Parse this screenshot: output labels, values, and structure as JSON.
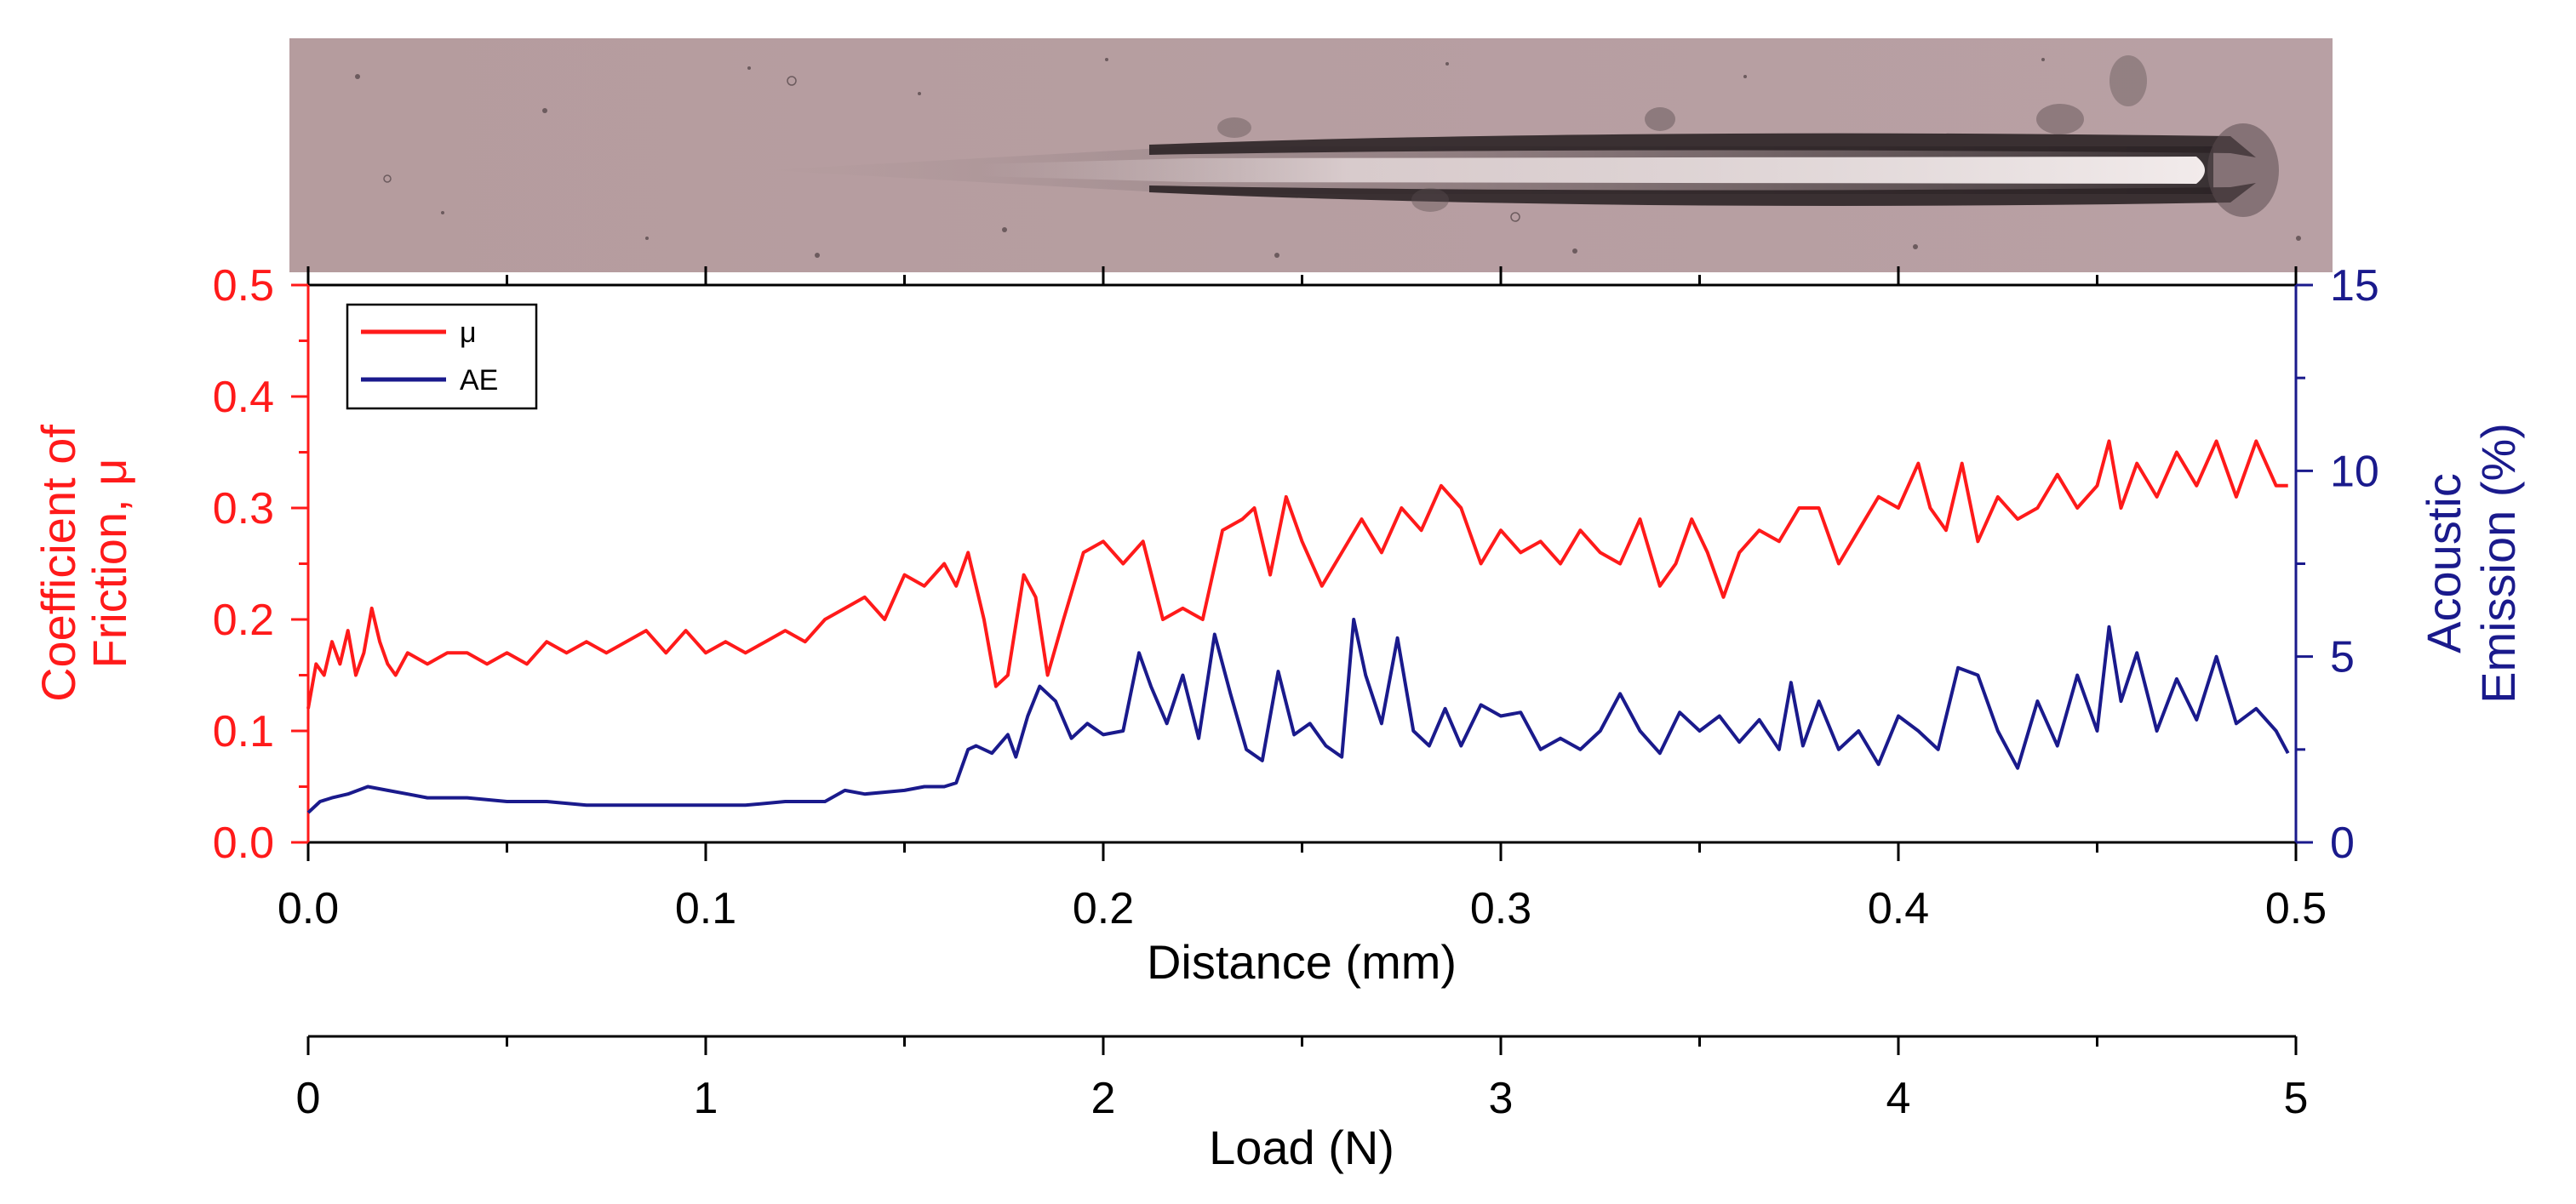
{
  "chart_data": {
    "type": "line",
    "title": "",
    "micrograph": {
      "description_icon": "scratch-track-micrograph-icon"
    },
    "x": {
      "label": "Distance (mm)",
      "lim": [
        0,
        0.5
      ],
      "ticks": [
        "0.0",
        "0.1",
        "0.2",
        "0.3",
        "0.4",
        "0.5"
      ],
      "tick_values": [
        0.0,
        0.1,
        0.2,
        0.3,
        0.4,
        0.5
      ]
    },
    "x2": {
      "label": "Load (N)",
      "lim": [
        0,
        5
      ],
      "ticks": [
        "0",
        "1",
        "2",
        "3",
        "4",
        "5"
      ],
      "tick_values": [
        0,
        1,
        2,
        3,
        4,
        5
      ]
    },
    "y_left": {
      "label_line1": "Coefficient of",
      "label_line2": "Friction, μ",
      "lim": [
        0,
        0.5
      ],
      "ticks": [
        "0.0",
        "0.1",
        "0.2",
        "0.3",
        "0.4",
        "0.5"
      ],
      "tick_values": [
        0.0,
        0.1,
        0.2,
        0.3,
        0.4,
        0.5
      ],
      "color": "#ff1a1a"
    },
    "y_right": {
      "label_line1": "Acoustic",
      "label_line2": "Emission (%)",
      "lim": [
        0,
        15
      ],
      "ticks": [
        "0",
        "5",
        "10",
        "15"
      ],
      "tick_values": [
        0,
        5,
        10,
        15
      ],
      "color": "#1a1a8c"
    },
    "legend": {
      "position": "top-left",
      "entries": [
        {
          "name": "μ",
          "color": "#ff1a1a"
        },
        {
          "name": "AE",
          "color": "#1a1a8c"
        }
      ]
    },
    "series": [
      {
        "name": "μ",
        "axis": "left",
        "color": "#ff1a1a",
        "x": [
          0.0,
          0.002,
          0.004,
          0.006,
          0.008,
          0.01,
          0.012,
          0.014,
          0.016,
          0.018,
          0.02,
          0.022,
          0.025,
          0.03,
          0.035,
          0.04,
          0.045,
          0.05,
          0.055,
          0.06,
          0.065,
          0.07,
          0.075,
          0.08,
          0.085,
          0.09,
          0.095,
          0.1,
          0.105,
          0.11,
          0.115,
          0.12,
          0.125,
          0.13,
          0.135,
          0.14,
          0.145,
          0.15,
          0.155,
          0.16,
          0.163,
          0.166,
          0.17,
          0.173,
          0.176,
          0.18,
          0.183,
          0.186,
          0.19,
          0.195,
          0.2,
          0.205,
          0.21,
          0.215,
          0.22,
          0.225,
          0.23,
          0.235,
          0.238,
          0.242,
          0.246,
          0.25,
          0.255,
          0.26,
          0.265,
          0.27,
          0.275,
          0.28,
          0.285,
          0.29,
          0.295,
          0.3,
          0.305,
          0.31,
          0.315,
          0.32,
          0.325,
          0.33,
          0.335,
          0.34,
          0.344,
          0.348,
          0.352,
          0.356,
          0.36,
          0.365,
          0.37,
          0.375,
          0.38,
          0.385,
          0.39,
          0.395,
          0.4,
          0.405,
          0.408,
          0.412,
          0.416,
          0.42,
          0.425,
          0.43,
          0.435,
          0.44,
          0.445,
          0.45,
          0.453,
          0.456,
          0.46,
          0.465,
          0.47,
          0.475,
          0.48,
          0.485,
          0.49,
          0.495,
          0.498
        ],
        "values": [
          0.12,
          0.16,
          0.15,
          0.18,
          0.16,
          0.19,
          0.15,
          0.17,
          0.21,
          0.18,
          0.16,
          0.15,
          0.17,
          0.16,
          0.17,
          0.17,
          0.16,
          0.17,
          0.16,
          0.18,
          0.17,
          0.18,
          0.17,
          0.18,
          0.19,
          0.17,
          0.19,
          0.17,
          0.18,
          0.17,
          0.18,
          0.19,
          0.18,
          0.2,
          0.21,
          0.22,
          0.2,
          0.24,
          0.23,
          0.25,
          0.23,
          0.26,
          0.2,
          0.14,
          0.15,
          0.24,
          0.22,
          0.15,
          0.2,
          0.26,
          0.27,
          0.25,
          0.27,
          0.2,
          0.21,
          0.2,
          0.28,
          0.29,
          0.3,
          0.24,
          0.31,
          0.27,
          0.23,
          0.26,
          0.29,
          0.26,
          0.3,
          0.28,
          0.32,
          0.3,
          0.25,
          0.28,
          0.26,
          0.27,
          0.25,
          0.28,
          0.26,
          0.25,
          0.29,
          0.23,
          0.25,
          0.29,
          0.26,
          0.22,
          0.26,
          0.28,
          0.27,
          0.3,
          0.3,
          0.25,
          0.28,
          0.31,
          0.3,
          0.34,
          0.3,
          0.28,
          0.34,
          0.27,
          0.31,
          0.29,
          0.3,
          0.33,
          0.3,
          0.32,
          0.36,
          0.3,
          0.34,
          0.31,
          0.35,
          0.32,
          0.36,
          0.31,
          0.36,
          0.32,
          0.32
        ]
      },
      {
        "name": "AE",
        "axis": "right",
        "color": "#1a1a8c",
        "x": [
          0.0,
          0.003,
          0.006,
          0.01,
          0.015,
          0.02,
          0.025,
          0.03,
          0.04,
          0.05,
          0.06,
          0.07,
          0.08,
          0.09,
          0.1,
          0.11,
          0.12,
          0.13,
          0.135,
          0.14,
          0.15,
          0.155,
          0.16,
          0.163,
          0.166,
          0.168,
          0.172,
          0.176,
          0.178,
          0.181,
          0.184,
          0.188,
          0.192,
          0.196,
          0.2,
          0.205,
          0.209,
          0.212,
          0.216,
          0.22,
          0.224,
          0.228,
          0.232,
          0.236,
          0.24,
          0.244,
          0.248,
          0.252,
          0.256,
          0.26,
          0.263,
          0.266,
          0.27,
          0.274,
          0.278,
          0.282,
          0.286,
          0.29,
          0.295,
          0.3,
          0.305,
          0.31,
          0.315,
          0.32,
          0.325,
          0.33,
          0.335,
          0.34,
          0.345,
          0.35,
          0.355,
          0.36,
          0.365,
          0.37,
          0.373,
          0.376,
          0.38,
          0.385,
          0.39,
          0.395,
          0.4,
          0.405,
          0.41,
          0.415,
          0.42,
          0.425,
          0.43,
          0.435,
          0.44,
          0.445,
          0.45,
          0.453,
          0.456,
          0.46,
          0.465,
          0.47,
          0.475,
          0.48,
          0.485,
          0.49,
          0.495,
          0.498
        ],
        "values": [
          0.8,
          1.1,
          1.2,
          1.3,
          1.5,
          1.4,
          1.3,
          1.2,
          1.2,
          1.1,
          1.1,
          1.0,
          1.0,
          1.0,
          1.0,
          1.0,
          1.1,
          1.1,
          1.4,
          1.3,
          1.4,
          1.5,
          1.5,
          1.6,
          2.5,
          2.6,
          2.4,
          2.9,
          2.3,
          3.4,
          4.2,
          3.8,
          2.8,
          3.2,
          2.9,
          3.0,
          5.1,
          4.2,
          3.2,
          4.5,
          2.8,
          5.6,
          4.0,
          2.5,
          2.2,
          4.6,
          2.9,
          3.2,
          2.6,
          2.3,
          6.0,
          4.5,
          3.2,
          5.5,
          3.0,
          2.6,
          3.6,
          2.6,
          3.7,
          3.4,
          3.5,
          2.5,
          2.8,
          2.5,
          3.0,
          4.0,
          3.0,
          2.4,
          3.5,
          3.0,
          3.4,
          2.7,
          3.3,
          2.5,
          4.3,
          2.6,
          3.8,
          2.5,
          3.0,
          2.1,
          3.4,
          3.0,
          2.5,
          4.7,
          4.5,
          3.0,
          2.0,
          3.8,
          2.6,
          4.5,
          3.0,
          5.8,
          3.8,
          5.1,
          3.0,
          4.4,
          3.3,
          5.0,
          3.2,
          3.6,
          3.0,
          2.4
        ]
      }
    ]
  }
}
